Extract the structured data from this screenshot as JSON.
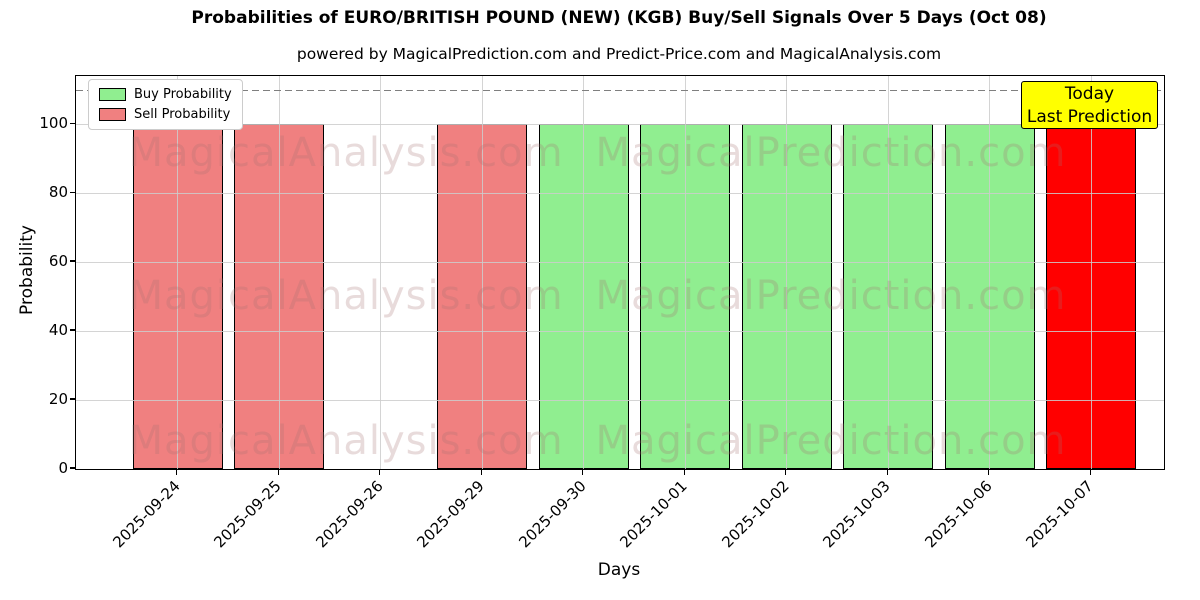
{
  "chart_data": {
    "type": "bar",
    "title": "Probabilities of EURO/BRITISH POUND (NEW) (KGB) Buy/Sell Signals Over 5 Days (Oct 08)",
    "subtitle": "powered by MagicalPrediction.com and Predict-Price.com and MagicalAnalysis.com",
    "xlabel": "Days",
    "ylabel": "Probability",
    "ylim": [
      0,
      114
    ],
    "yticks": [
      0,
      20,
      40,
      60,
      80,
      100
    ],
    "grid": true,
    "threshold_dashed_line": 110,
    "legend_position": "upper-left",
    "categories": [
      "2025-09-24",
      "2025-09-25",
      "2025-09-26",
      "2025-09-29",
      "2025-09-30",
      "2025-10-01",
      "2025-10-02",
      "2025-10-03",
      "2025-10-06",
      "2025-10-07"
    ],
    "series": [
      {
        "name": "Buy Probability",
        "color": "#90EE90",
        "values": [
          0,
          0,
          0,
          0,
          100,
          100,
          100,
          100,
          100,
          0
        ]
      },
      {
        "name": "Sell Probability",
        "color": "#F08080",
        "values": [
          100,
          100,
          0,
          100,
          0,
          0,
          0,
          0,
          0,
          100
        ]
      }
    ],
    "bars": [
      {
        "category": "2025-09-24",
        "value": 100,
        "signal": "sell",
        "color": "#F08080"
      },
      {
        "category": "2025-09-25",
        "value": 100,
        "signal": "sell",
        "color": "#F08080"
      },
      {
        "category": "2025-09-26",
        "value": 0,
        "signal": "none",
        "color": null
      },
      {
        "category": "2025-09-29",
        "value": 100,
        "signal": "sell",
        "color": "#F08080"
      },
      {
        "category": "2025-09-30",
        "value": 100,
        "signal": "buy",
        "color": "#90EE90"
      },
      {
        "category": "2025-10-01",
        "value": 100,
        "signal": "buy",
        "color": "#90EE90"
      },
      {
        "category": "2025-10-02",
        "value": 100,
        "signal": "buy",
        "color": "#90EE90"
      },
      {
        "category": "2025-10-03",
        "value": 100,
        "signal": "buy",
        "color": "#90EE90"
      },
      {
        "category": "2025-10-06",
        "value": 100,
        "signal": "buy",
        "color": "#90EE90"
      },
      {
        "category": "2025-10-07",
        "value": 100,
        "signal": "sell-today",
        "color": "#FF0000"
      }
    ],
    "bar_edge_color": "#000000"
  },
  "legend": {
    "items": [
      {
        "label": "Buy Probability",
        "color": "#90EE90"
      },
      {
        "label": "Sell Probability",
        "color": "#F08080"
      }
    ]
  },
  "annotation": {
    "line1": "Today",
    "line2": "Last Prediction",
    "bg": "#FFFF00"
  },
  "watermarks": {
    "left": "MagicalAnalysis.com",
    "right": "MagicalPrediction.com"
  },
  "colors": {
    "grid": "#CCCCCC",
    "dashed_line": "#7F7F7F",
    "background": "#FFFFFF"
  }
}
